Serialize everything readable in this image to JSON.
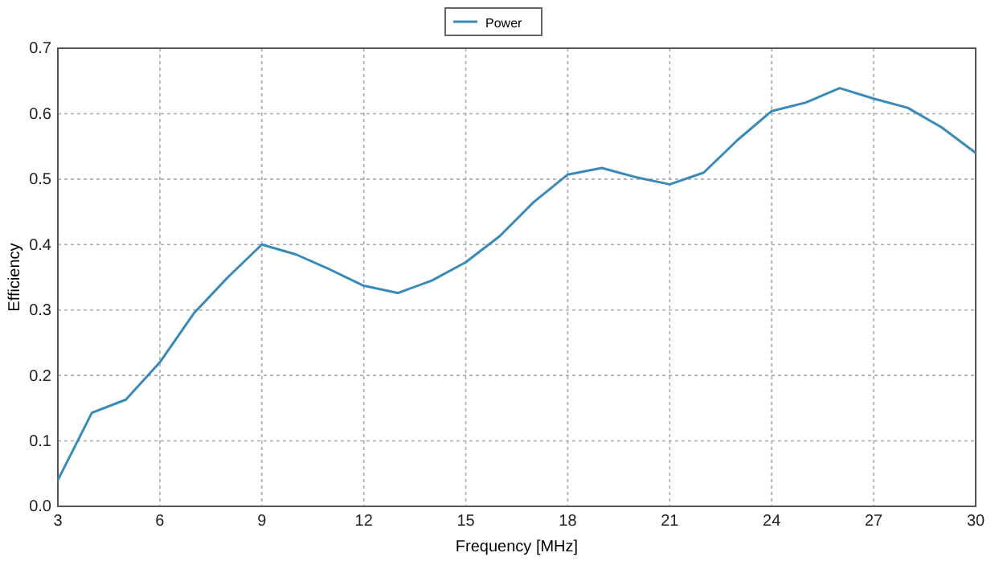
{
  "chart_data": {
    "type": "line",
    "xlabel": "Frequency [MHz]",
    "ylabel": "Efficiency",
    "x": [
      3,
      4,
      5,
      6,
      7,
      8,
      9,
      10,
      11,
      12,
      13,
      14,
      15,
      16,
      17,
      18,
      19,
      20,
      21,
      22,
      23,
      24,
      25,
      26,
      27,
      28,
      29,
      30
    ],
    "series": [
      {
        "name": "Power",
        "color": "#3a8ab8",
        "values": [
          0.04,
          0.143,
          0.163,
          0.22,
          0.295,
          0.35,
          0.4,
          0.385,
          0.362,
          0.337,
          0.326,
          0.345,
          0.373,
          0.413,
          0.465,
          0.507,
          0.517,
          0.503,
          0.492,
          0.51,
          0.56,
          0.604,
          0.617,
          0.639,
          0.623,
          0.609,
          0.579,
          0.54
        ]
      }
    ],
    "xlim": [
      3,
      30
    ],
    "xticks": [
      3,
      6,
      9,
      12,
      15,
      18,
      21,
      24,
      27,
      30
    ],
    "ylim": [
      0,
      0.7
    ],
    "yticks": [
      {
        "value": 0,
        "label": "0.0"
      },
      {
        "value": 0.1,
        "label": "0.1"
      },
      {
        "value": 0.2,
        "label": "0.2"
      },
      {
        "value": 0.3,
        "label": "0.3"
      },
      {
        "value": 0.4,
        "label": "0.4"
      },
      {
        "value": 0.5,
        "label": "0.5"
      },
      {
        "value": 0.6,
        "label": "0.6"
      },
      {
        "value": 0.7,
        "label": "0.7"
      }
    ],
    "grid": true,
    "legend": "top",
    "marker": "none",
    "line_style": "solid"
  }
}
